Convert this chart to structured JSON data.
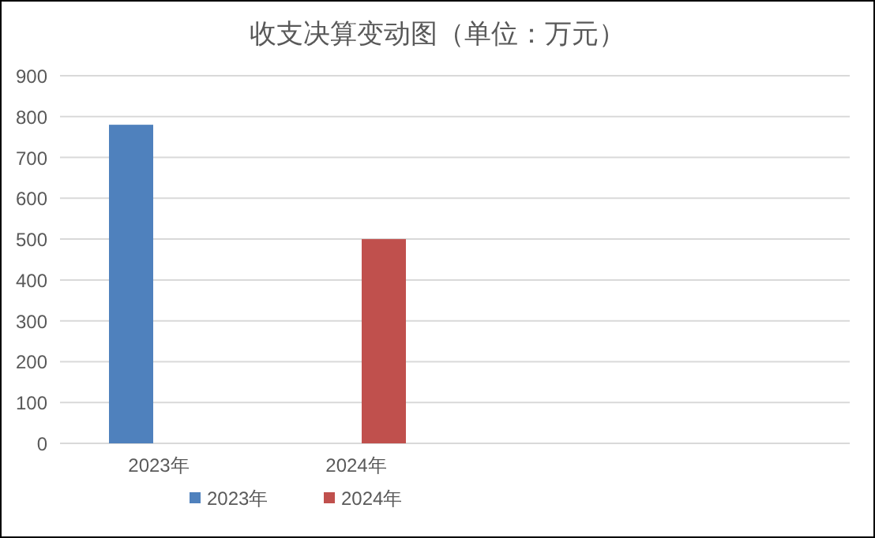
{
  "chart_data": {
    "type": "bar",
    "title": "收支决算变动图（单位：万元）",
    "categories": [
      "2023年",
      "2024年",
      null,
      null
    ],
    "series": [
      {
        "name": "2023年",
        "color": "#4f81bd",
        "values": [
          780,
          null,
          null,
          null
        ]
      },
      {
        "name": "2024年",
        "color": "#c0504d",
        "values": [
          null,
          500,
          null,
          null
        ]
      }
    ],
    "ylim": [
      0,
      900
    ],
    "yticks": [
      0,
      100,
      200,
      300,
      400,
      500,
      600,
      700,
      800,
      900
    ],
    "grid": "y",
    "legend": "bottom"
  }
}
